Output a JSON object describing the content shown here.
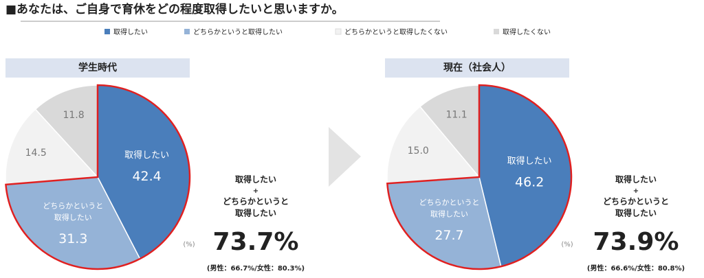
{
  "title": "■あなたは、ご自身で育休をどの程度取得したいと思いますか。",
  "chart_data": [
    {
      "type": "pie",
      "title": "学生時代",
      "categories": [
        "取得したい",
        "どちらかというと取得したい",
        "どちらかというと取得したくない",
        "取得したくない"
      ],
      "values": [
        42.4,
        31.3,
        14.5,
        11.8
      ],
      "colors": [
        "#4a7ebb",
        "#95b3d7",
        "#f2f2f2",
        "#d9d9d9"
      ],
      "slice_labels": [
        [
          "取得したい"
        ],
        [
          "どちらかというと",
          "取得したい"
        ],
        null,
        null
      ],
      "unit_note": "(%)",
      "summary": {
        "label_lines": [
          "取得したい",
          "+",
          "どちらかというと",
          "取得したい"
        ],
        "total": "73.7%",
        "breakdown": "(男性：66.7%/女性：80.3%)"
      }
    },
    {
      "type": "pie",
      "title": "現在（社会人）",
      "categories": [
        "取得したい",
        "どちらかというと取得したい",
        "どちらかというと取得したくない",
        "取得したくない"
      ],
      "values": [
        46.2,
        27.7,
        15.0,
        11.1
      ],
      "value_labels": [
        "46.2",
        "27.7",
        "15.0",
        "11.1"
      ],
      "colors": [
        "#4a7ebb",
        "#95b3d7",
        "#f2f2f2",
        "#d9d9d9"
      ],
      "slice_labels": [
        [
          "取得したい"
        ],
        [
          "どちらかというと",
          "取得したい"
        ],
        null,
        null
      ],
      "unit_note": "(%)",
      "summary": {
        "label_lines": [
          "取得したい",
          "+",
          "どちらかというと",
          "取得したい"
        ],
        "total": "73.9%",
        "breakdown": "(男性：66.6%/女性：80.8%)"
      }
    }
  ]
}
